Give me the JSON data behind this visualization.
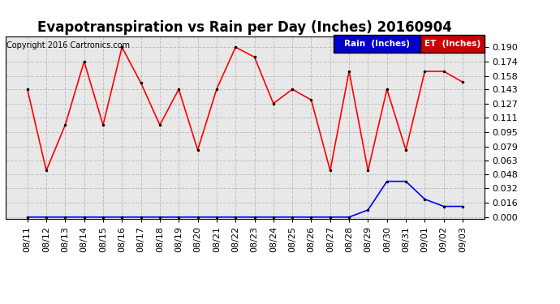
{
  "title": "Evapotranspiration vs Rain per Day (Inches) 20160904",
  "copyright": "Copyright 2016 Cartronics.com",
  "x_labels": [
    "08/11",
    "08/12",
    "08/13",
    "08/14",
    "08/15",
    "08/16",
    "08/17",
    "08/18",
    "08/19",
    "08/20",
    "08/21",
    "08/22",
    "08/23",
    "08/24",
    "08/25",
    "08/26",
    "08/27",
    "08/28",
    "08/29",
    "08/30",
    "08/31",
    "09/01",
    "09/02",
    "09/03"
  ],
  "et_values": [
    0.143,
    0.052,
    0.103,
    0.174,
    0.103,
    0.19,
    0.15,
    0.103,
    0.143,
    0.075,
    0.143,
    0.19,
    0.179,
    0.127,
    0.143,
    0.131,
    0.052,
    0.163,
    0.052,
    0.143,
    0.075,
    0.163,
    0.163,
    0.151
  ],
  "rain_values": [
    0.0,
    0.0,
    0.0,
    0.0,
    0.0,
    0.0,
    0.0,
    0.0,
    0.0,
    0.0,
    0.0,
    0.0,
    0.0,
    0.0,
    0.0,
    0.0,
    0.0,
    0.0,
    0.008,
    0.04,
    0.04,
    0.02,
    0.012,
    0.012
  ],
  "et_color": "#ff0000",
  "rain_color": "#0000ff",
  "background_color": "#ffffff",
  "plot_bg_color": "#e8e8e8",
  "grid_color": "#c0c0c0",
  "title_fontsize": 12,
  "tick_fontsize": 8,
  "copyright_fontsize": 7,
  "legend_rain_bg": "#0000cc",
  "legend_et_bg": "#cc0000",
  "legend_text_color": "#ffffff",
  "ylim_min": -0.002,
  "ylim_max": 0.202,
  "yticks": [
    0.0,
    0.016,
    0.032,
    0.048,
    0.063,
    0.079,
    0.095,
    0.111,
    0.127,
    0.143,
    0.158,
    0.174,
    0.19
  ]
}
